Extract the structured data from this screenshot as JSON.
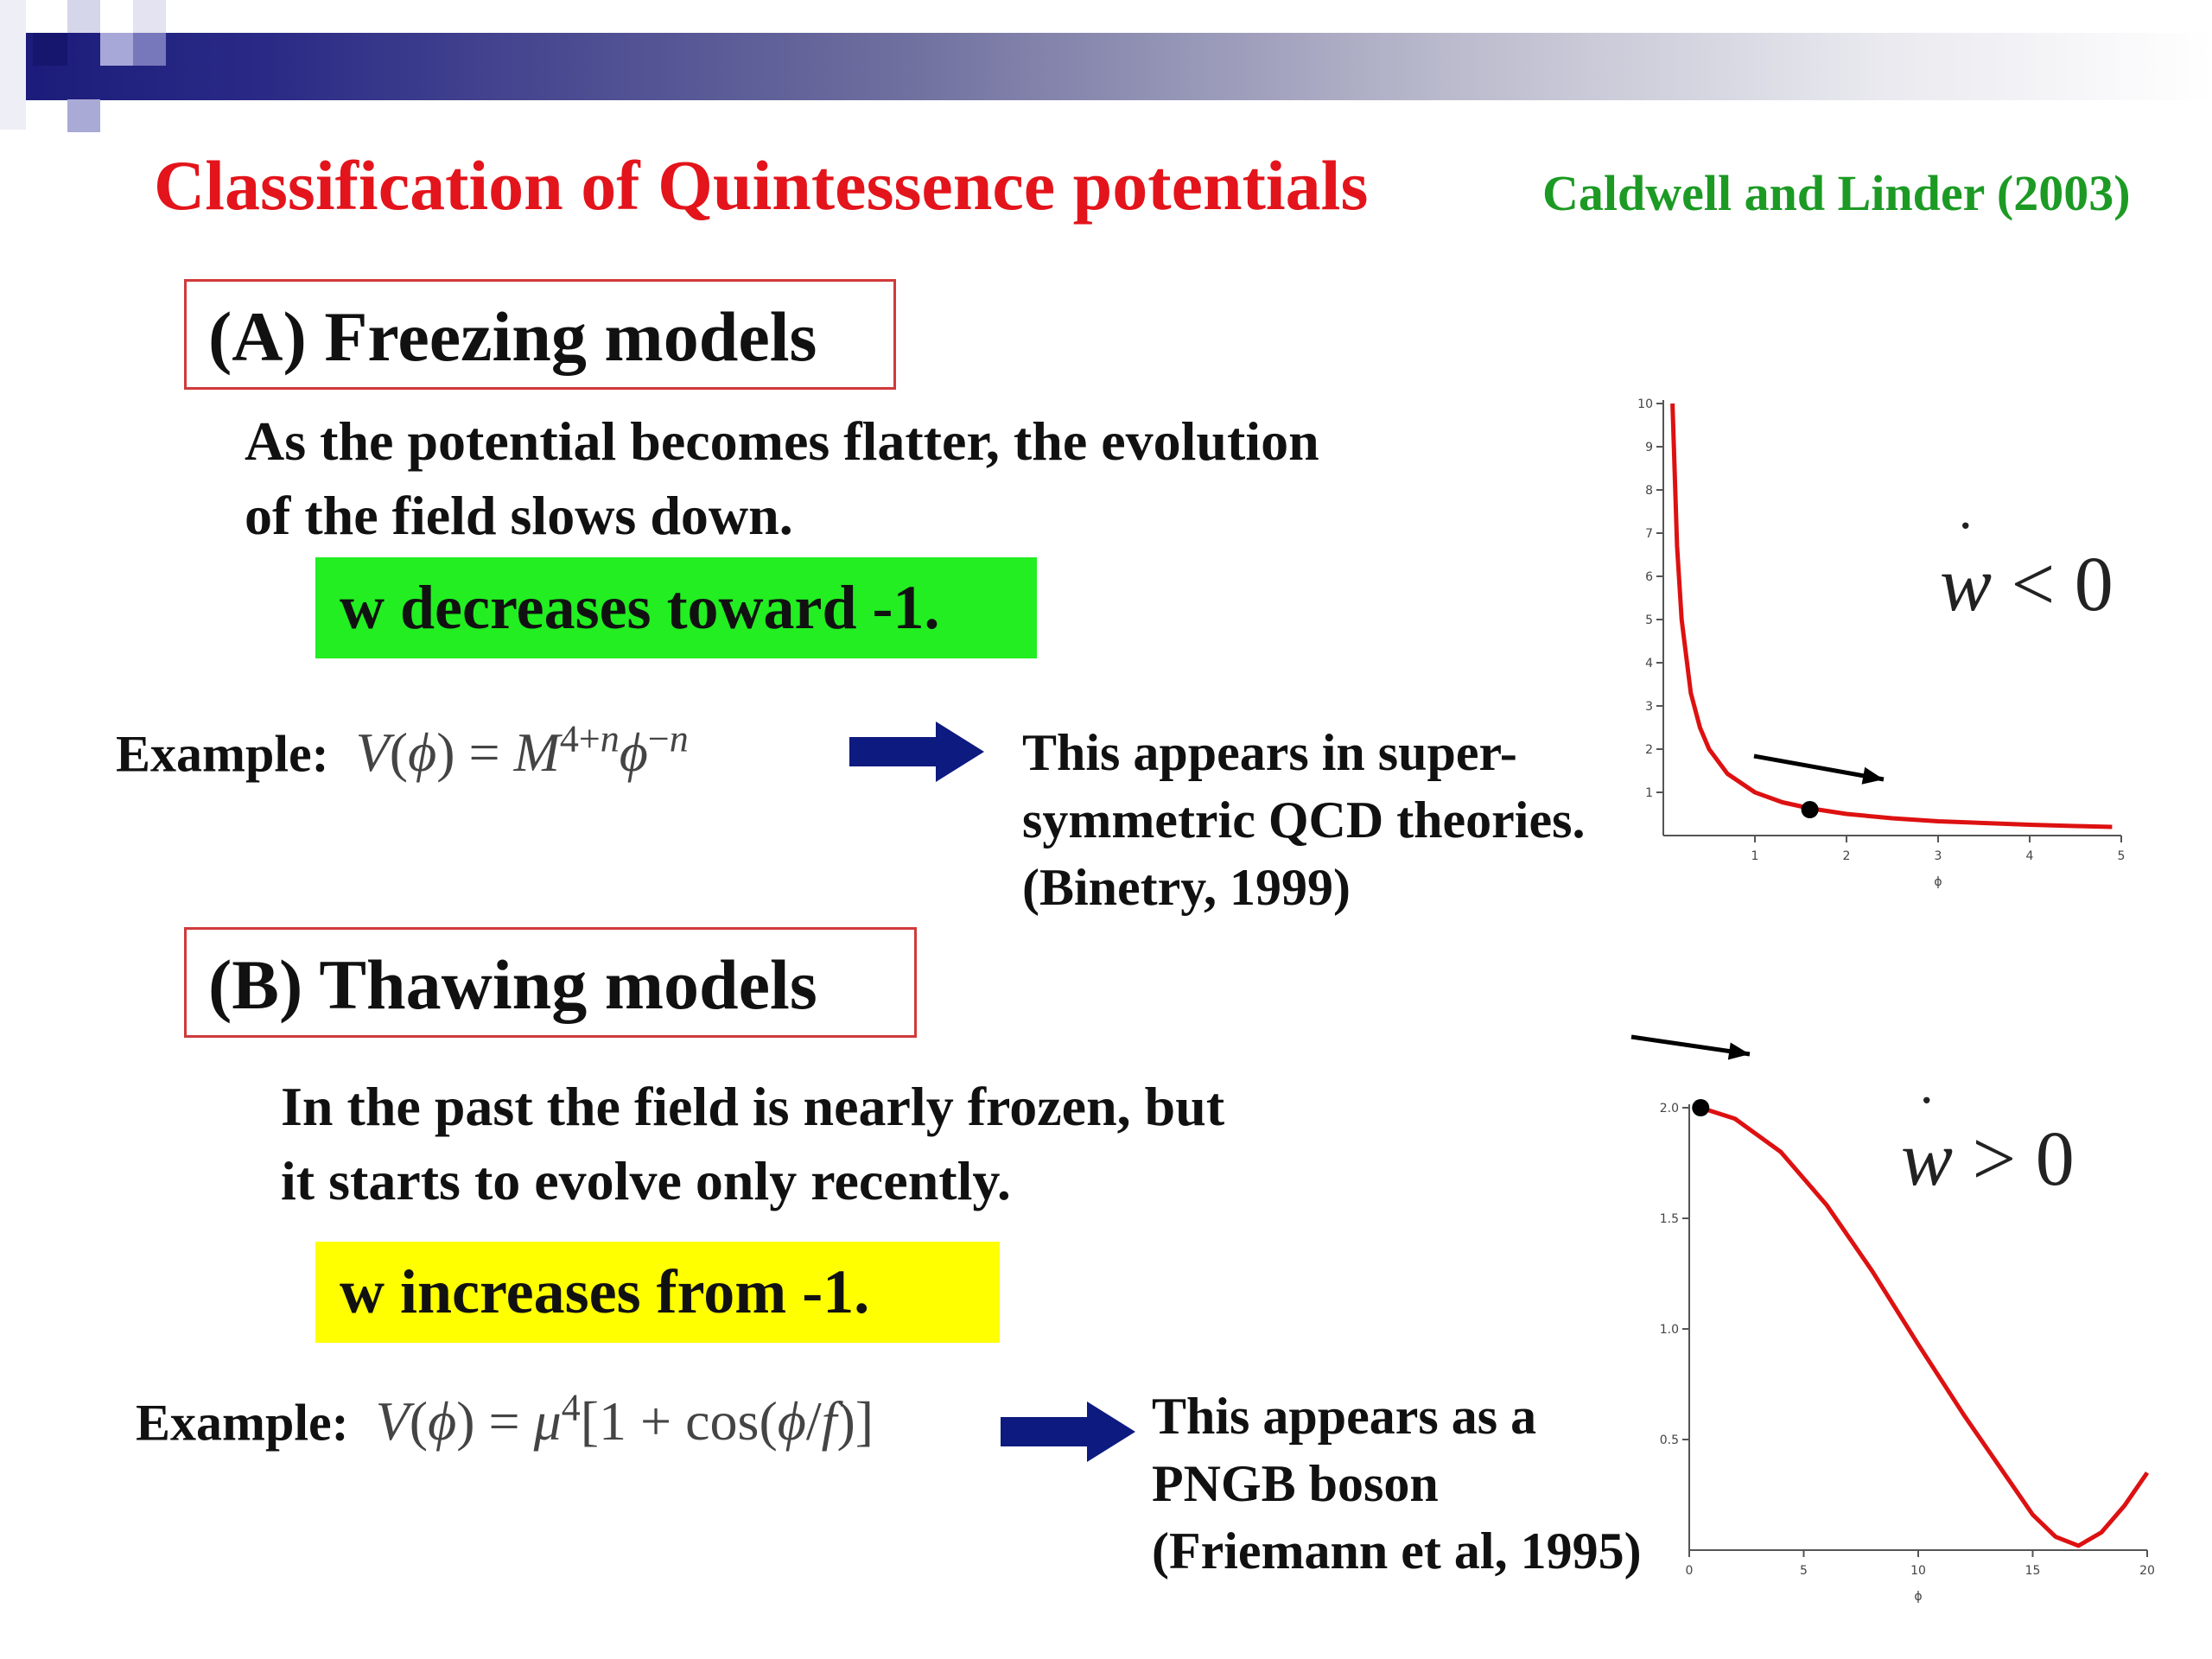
{
  "slide": {
    "title": "Classification of Quintessence potentials",
    "citation": "Caldwell and Linder (2003)"
  },
  "section_a": {
    "heading": "(A) Freezing models",
    "desc_line1": "As the potential becomes flatter, the evolution",
    "desc_line2": "of the field slows down.",
    "highlight": "w decreases toward  -1.",
    "example_label": "Example:",
    "note_line1": "This appears in super-",
    "note_line2": "symmetric QCD theories.",
    "note_line3": "(Binetry, 1999)",
    "w_label_w": "w",
    "w_label_rest": "< 0"
  },
  "section_b": {
    "heading": "(B)  Thawing models",
    "desc_line1": "In the past the field is nearly frozen, but",
    "desc_line2": "it starts to evolve only recently.",
    "highlight": "w increases from -1.",
    "example_label": "Example:",
    "note_line1": "This appears as a",
    "note_line2": "PNGB boson",
    "note_line3": "(Friemann et al, 1995)",
    "w_label_w": "w",
    "w_label_rest": "> 0"
  },
  "chart_data": [
    {
      "type": "line",
      "xlabel": "ϕ",
      "ylabel": "",
      "xlim": [
        0,
        5
      ],
      "ylim": [
        0,
        10
      ],
      "x_ticks": [
        "1",
        "2",
        "3",
        "4",
        "5"
      ],
      "y_ticks": [
        "1",
        "2",
        "3",
        "4",
        "5",
        "6",
        "7",
        "8",
        "9",
        "10"
      ],
      "series": [
        {
          "color": "#dd1111",
          "x": [
            0.1,
            0.15,
            0.2,
            0.3,
            0.4,
            0.5,
            0.7,
            1.0,
            1.3,
            1.6,
            2.0,
            2.5,
            3.0,
            3.5,
            4.0,
            4.5,
            4.9
          ],
          "y": [
            10.0,
            6.7,
            5.0,
            3.3,
            2.5,
            2.0,
            1.43,
            1.0,
            0.77,
            0.63,
            0.5,
            0.4,
            0.33,
            0.29,
            0.25,
            0.22,
            0.2
          ]
        }
      ],
      "marker": {
        "x": 1.6,
        "y": 0.6
      }
    },
    {
      "type": "line",
      "xlabel": "ϕ",
      "ylabel": "",
      "xlim": [
        0,
        20
      ],
      "ylim": [
        0,
        2.0
      ],
      "x_ticks": [
        "0",
        "5",
        "10",
        "15",
        "20"
      ],
      "y_ticks": [
        "0.5",
        "1.0",
        "1.5",
        "2.0"
      ],
      "series": [
        {
          "color": "#dd1111",
          "x": [
            0.5,
            2,
            4,
            6,
            8,
            10,
            12,
            14,
            15,
            16,
            17,
            18,
            19,
            20
          ],
          "y": [
            2.0,
            1.95,
            1.8,
            1.56,
            1.26,
            0.93,
            0.61,
            0.31,
            0.16,
            0.06,
            0.02,
            0.08,
            0.2,
            0.35
          ]
        }
      ],
      "marker": {
        "x": 0.5,
        "y": 2.0
      }
    }
  ]
}
